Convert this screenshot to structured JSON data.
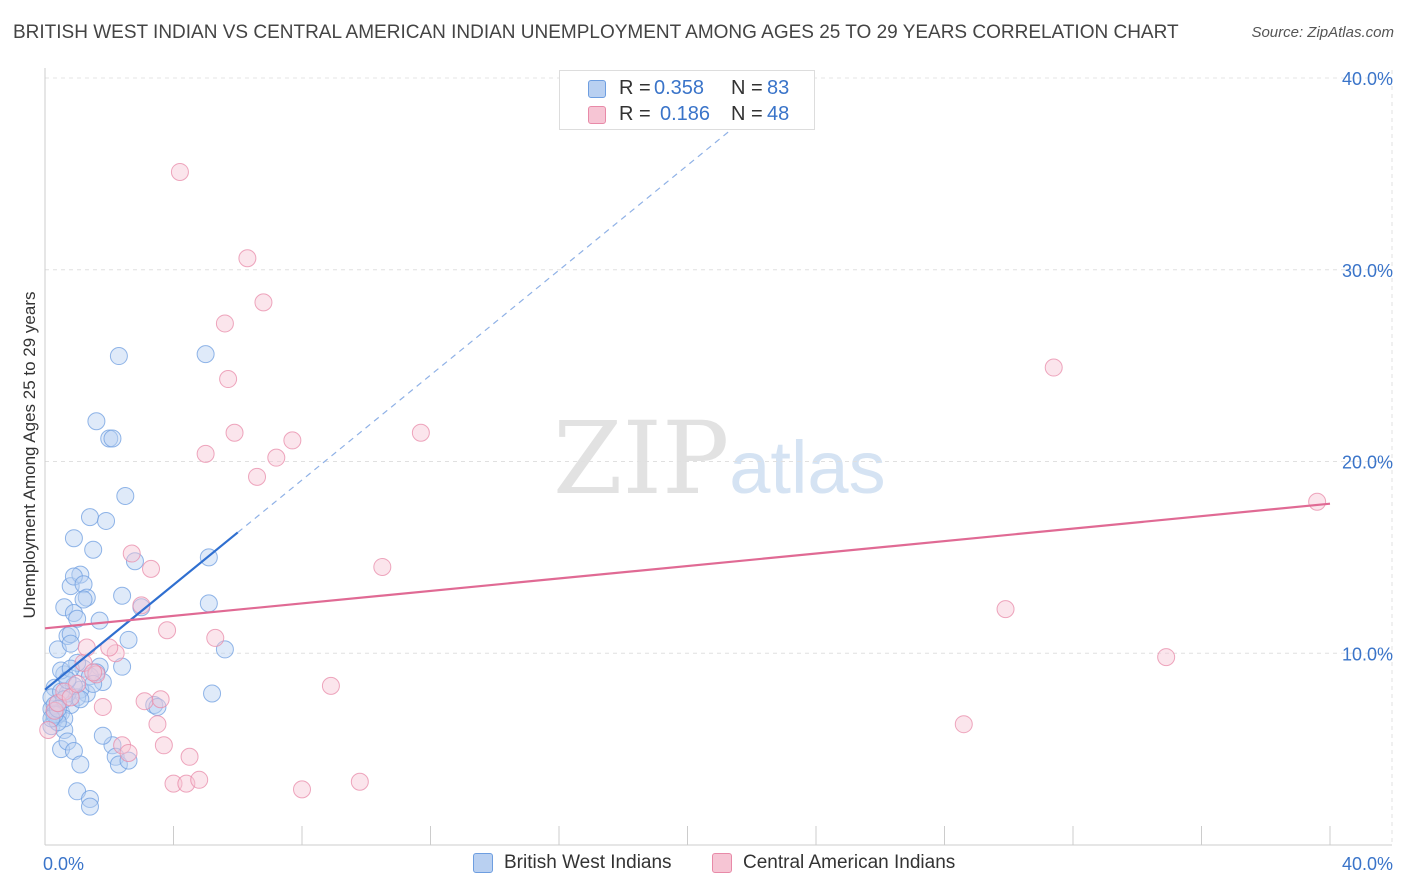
{
  "title": "BRITISH WEST INDIAN VS CENTRAL AMERICAN INDIAN UNEMPLOYMENT AMONG AGES 25 TO 29 YEARS CORRELATION CHART",
  "source": "Source: ZipAtlas.com",
  "watermark": {
    "zip": "ZIP",
    "atlas": "atlas"
  },
  "legend": {
    "r_label": "R =",
    "n_label": "N =",
    "series": [
      {
        "r": "0.358",
        "n": "83"
      },
      {
        "r": "0.186",
        "n": "48"
      }
    ]
  },
  "chart_data": {
    "type": "scatter",
    "title": "BRITISH WEST INDIAN VS CENTRAL AMERICAN INDIAN UNEMPLOYMENT AMONG AGES 25 TO 29 YEARS CORRELATION CHART",
    "xlabel": "",
    "ylabel": "Unemployment Among Ages 25 to 29 years",
    "xlim": [
      0,
      40
    ],
    "ylim": [
      0,
      40
    ],
    "x_tick_labels": [
      "0.0%",
      "40.0%"
    ],
    "y_tick_labels": [
      "10.0%",
      "20.0%",
      "30.0%",
      "40.0%"
    ],
    "y_ticks": [
      10,
      20,
      30,
      40
    ],
    "grid": true,
    "series": [
      {
        "name": "British West Indians",
        "color": "#6e9ee0",
        "fill": "#b9d0f1",
        "trend": {
          "x0": 0.0,
          "y0": 8.1,
          "x1": 6.0,
          "y1": 16.3,
          "dash_to_x": 21.5,
          "dash_to_y": 37.5
        },
        "points": [
          [
            0.2,
            7.1
          ],
          [
            0.3,
            6.9
          ],
          [
            0.3,
            6.6
          ],
          [
            0.2,
            6.2
          ],
          [
            0.4,
            7.4
          ],
          [
            0.5,
            6.9
          ],
          [
            0.3,
            8.2
          ],
          [
            0.6,
            8.9
          ],
          [
            0.5,
            9.1
          ],
          [
            0.4,
            10.2
          ],
          [
            0.7,
            10.9
          ],
          [
            0.8,
            11.0
          ],
          [
            0.6,
            12.4
          ],
          [
            0.9,
            12.1
          ],
          [
            1.0,
            11.8
          ],
          [
            0.8,
            13.5
          ],
          [
            1.1,
            14.1
          ],
          [
            0.9,
            14.0
          ],
          [
            1.2,
            13.6
          ],
          [
            1.3,
            12.9
          ],
          [
            1.5,
            15.4
          ],
          [
            1.4,
            17.1
          ],
          [
            0.9,
            16.0
          ],
          [
            1.6,
            22.1
          ],
          [
            2.0,
            21.2
          ],
          [
            2.1,
            21.2
          ],
          [
            2.3,
            25.5
          ],
          [
            1.9,
            16.9
          ],
          [
            2.5,
            18.2
          ],
          [
            2.4,
            13.0
          ],
          [
            3.0,
            12.4
          ],
          [
            2.8,
            14.8
          ],
          [
            2.6,
            10.7
          ],
          [
            2.4,
            9.3
          ],
          [
            1.8,
            8.5
          ],
          [
            1.7,
            9.3
          ],
          [
            1.3,
            7.9
          ],
          [
            1.1,
            8.1
          ],
          [
            1.0,
            7.7
          ],
          [
            0.8,
            7.3
          ],
          [
            0.6,
            6.0
          ],
          [
            0.5,
            5.0
          ],
          [
            0.7,
            5.4
          ],
          [
            0.9,
            4.9
          ],
          [
            1.1,
            4.2
          ],
          [
            1.0,
            2.8
          ],
          [
            1.4,
            2.4
          ],
          [
            1.4,
            2.0
          ],
          [
            2.1,
            5.2
          ],
          [
            2.2,
            4.6
          ],
          [
            2.3,
            4.2
          ],
          [
            3.4,
            7.3
          ],
          [
            3.5,
            7.2
          ],
          [
            5.0,
            25.6
          ],
          [
            5.1,
            15.0
          ],
          [
            5.1,
            12.6
          ],
          [
            5.6,
            10.2
          ],
          [
            5.2,
            7.9
          ],
          [
            2.6,
            4.4
          ],
          [
            1.8,
            5.7
          ],
          [
            0.2,
            7.7
          ],
          [
            0.3,
            7.3
          ],
          [
            0.4,
            6.8
          ],
          [
            0.6,
            6.6
          ],
          [
            0.7,
            7.9
          ],
          [
            0.9,
            8.3
          ],
          [
            1.2,
            9.2
          ],
          [
            1.0,
            9.5
          ],
          [
            0.8,
            9.2
          ],
          [
            1.4,
            8.8
          ],
          [
            1.6,
            9.0
          ],
          [
            0.5,
            8.0
          ],
          [
            0.6,
            7.6
          ],
          [
            0.4,
            6.4
          ],
          [
            0.3,
            6.8
          ],
          [
            0.2,
            6.6
          ],
          [
            0.4,
            7.1
          ],
          [
            0.7,
            8.6
          ],
          [
            1.1,
            7.6
          ],
          [
            1.5,
            8.4
          ],
          [
            0.8,
            10.5
          ],
          [
            1.2,
            12.8
          ],
          [
            1.7,
            11.7
          ]
        ]
      },
      {
        "name": "Central American Indians",
        "color": "#e88aa8",
        "fill": "#f6c5d4",
        "trend": {
          "x0": 0.0,
          "y0": 11.3,
          "x1": 40.0,
          "y1": 17.8
        },
        "points": [
          [
            0.1,
            6.0
          ],
          [
            0.3,
            7.0
          ],
          [
            0.4,
            7.4
          ],
          [
            0.6,
            8.0
          ],
          [
            0.8,
            7.7
          ],
          [
            1.0,
            8.4
          ],
          [
            1.2,
            9.5
          ],
          [
            1.3,
            10.3
          ],
          [
            1.6,
            8.9
          ],
          [
            1.8,
            7.2
          ],
          [
            2.2,
            10.0
          ],
          [
            2.4,
            5.2
          ],
          [
            2.6,
            4.8
          ],
          [
            2.7,
            15.2
          ],
          [
            3.0,
            12.5
          ],
          [
            3.1,
            7.5
          ],
          [
            3.3,
            14.4
          ],
          [
            3.5,
            6.3
          ],
          [
            3.6,
            7.6
          ],
          [
            3.7,
            5.2
          ],
          [
            3.8,
            11.2
          ],
          [
            4.0,
            3.2
          ],
          [
            4.2,
            35.1
          ],
          [
            4.4,
            3.2
          ],
          [
            4.5,
            4.6
          ],
          [
            4.8,
            3.4
          ],
          [
            5.0,
            20.4
          ],
          [
            5.3,
            10.8
          ],
          [
            5.6,
            27.2
          ],
          [
            5.7,
            24.3
          ],
          [
            5.9,
            21.5
          ],
          [
            6.3,
            30.6
          ],
          [
            6.6,
            19.2
          ],
          [
            6.8,
            28.3
          ],
          [
            7.2,
            20.2
          ],
          [
            7.7,
            21.1
          ],
          [
            8.0,
            2.9
          ],
          [
            8.9,
            8.3
          ],
          [
            9.8,
            3.3
          ],
          [
            10.5,
            14.5
          ],
          [
            11.7,
            21.5
          ],
          [
            28.6,
            6.3
          ],
          [
            29.9,
            12.3
          ],
          [
            31.4,
            24.9
          ],
          [
            34.9,
            9.8
          ],
          [
            39.6,
            17.9
          ],
          [
            2.0,
            10.3
          ],
          [
            1.5,
            9.0
          ]
        ]
      }
    ]
  }
}
